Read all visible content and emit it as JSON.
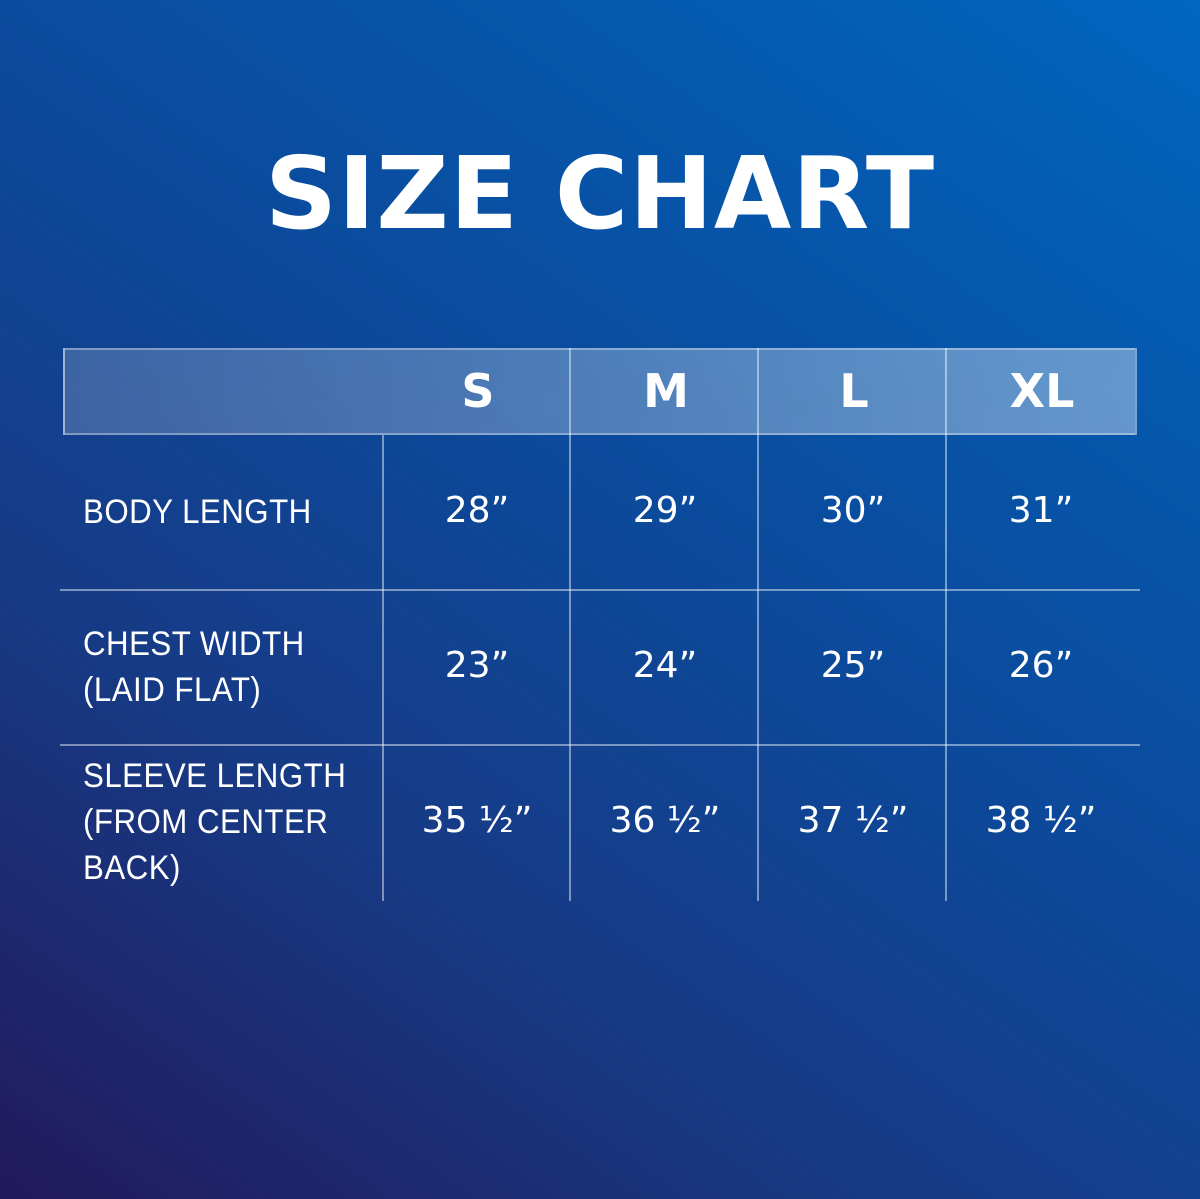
{
  "title": "SIZE CHART",
  "chart_data": {
    "type": "table",
    "title": "SIZE CHART",
    "columns": [
      "S",
      "M",
      "L",
      "XL"
    ],
    "rows": [
      {
        "label": "BODY LENGTH",
        "lines": [
          "BODY LENGTH"
        ],
        "values": [
          "28”",
          "29”",
          "30”",
          "31”"
        ]
      },
      {
        "label": "CHEST WIDTH (LAID FLAT)",
        "lines": [
          "CHEST WIDTH",
          "(LAID FLAT)"
        ],
        "values": [
          "23”",
          "24”",
          "25”",
          "26”"
        ]
      },
      {
        "label": "SLEEVE LENGTH (FROM CENTER BACK)",
        "lines": [
          "SLEEVE LENGTH",
          "(FROM CENTER",
          "BACK)"
        ],
        "values": [
          "35 ½”",
          "36 ½”",
          "37 ½”",
          "38 ½”"
        ]
      }
    ]
  },
  "colors": {
    "background_top": "#0066bf",
    "background_bottom": "#22195a",
    "text": "#ffffff"
  }
}
